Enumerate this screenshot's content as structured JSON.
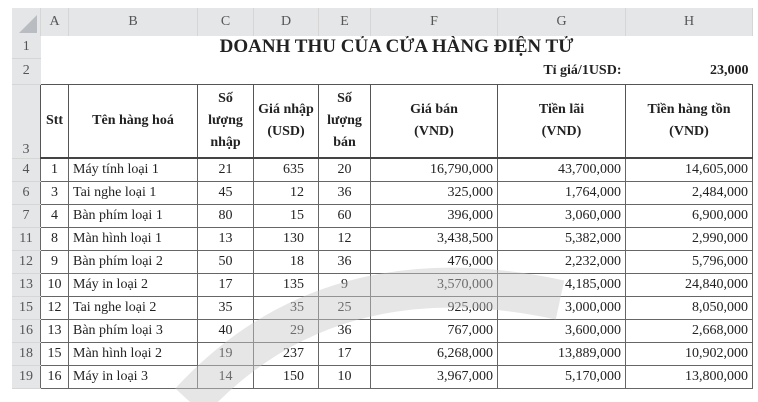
{
  "columns": [
    "A",
    "B",
    "C",
    "D",
    "E",
    "F",
    "G",
    "H"
  ],
  "title": "DOANH THU CỦA CỬA HÀNG ĐIỆN TỬ",
  "rate_label": "Tỉ giá/1USD:",
  "rate_value": "23,000",
  "row_numbers": {
    "title": "1",
    "rate": "2",
    "header": "3"
  },
  "headers": [
    "Stt",
    "Tên hàng hoá",
    "Số lượng nhập",
    "Giá nhập (USD)",
    "Số lượng bán",
    "Giá bán (VND)",
    "Tiền lãi (VND)",
    "Tiền hàng tồn (VND)"
  ],
  "rows": [
    {
      "row": "4",
      "cells": [
        "1",
        "Máy tính loại 1",
        "21",
        "635",
        "20",
        "16,790,000",
        "43,700,000",
        "14,605,000"
      ]
    },
    {
      "row": "6",
      "cells": [
        "3",
        "Tai nghe loại 1",
        "45",
        "12",
        "36",
        "325,000",
        "1,764,000",
        "2,484,000"
      ]
    },
    {
      "row": "7",
      "cells": [
        "4",
        "Bàn phím loại 1",
        "80",
        "15",
        "60",
        "396,000",
        "3,060,000",
        "6,900,000"
      ]
    },
    {
      "row": "11",
      "cells": [
        "8",
        "Màn hình loại 1",
        "13",
        "130",
        "12",
        "3,438,500",
        "5,382,000",
        "2,990,000"
      ]
    },
    {
      "row": "12",
      "cells": [
        "9",
        "Bàn phím loại 2",
        "50",
        "18",
        "36",
        "476,000",
        "2,232,000",
        "5,796,000"
      ]
    },
    {
      "row": "13",
      "cells": [
        "10",
        "Máy in loại 2",
        "17",
        "135",
        "9",
        "3,570,000",
        "4,185,000",
        "24,840,000"
      ]
    },
    {
      "row": "15",
      "cells": [
        "12",
        "Tai nghe loại 2",
        "35",
        "35",
        "25",
        "925,000",
        "3,000,000",
        "8,050,000"
      ]
    },
    {
      "row": "16",
      "cells": [
        "13",
        "Bàn phím loại 3",
        "40",
        "29",
        "36",
        "767,000",
        "3,600,000",
        "2,668,000"
      ]
    },
    {
      "row": "18",
      "cells": [
        "15",
        "Màn hình loại 2",
        "19",
        "237",
        "17",
        "6,268,000",
        "13,889,000",
        "10,902,000"
      ]
    },
    {
      "row": "19",
      "cells": [
        "16",
        "Máy in loại 3",
        "14",
        "150",
        "10",
        "3,967,000",
        "5,170,000",
        "13,800,000"
      ]
    }
  ]
}
